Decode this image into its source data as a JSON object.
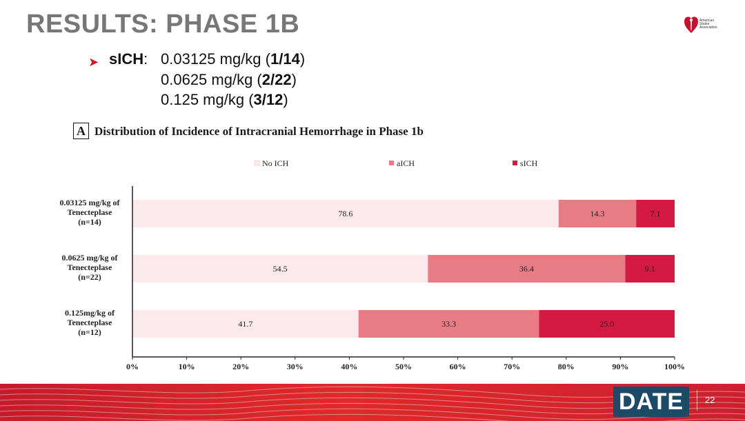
{
  "slide": {
    "title": "RESULTS: PHASE 1B",
    "page_number": "22",
    "footer_badge": "DATE",
    "logo_text": [
      "American",
      "Stroke",
      "Association."
    ]
  },
  "bullets": {
    "term": "sICH",
    "colon": ":",
    "lines": [
      {
        "dose": "0.03125 mg/kg (",
        "frac": "1/14",
        "close": ")"
      },
      {
        "dose": "0.0625 mg/kg (",
        "frac": "2/22",
        "close": ")"
      },
      {
        "dose": "0.125 mg/kg (",
        "frac": "3/12",
        "close": ")"
      }
    ]
  },
  "chart_data": {
    "type": "bar",
    "orientation": "horizontal",
    "stacked": true,
    "panel_label": "A",
    "title": "Distribution of Incidence of Intracranial Hemorrhage in Phase 1b",
    "categories": [
      [
        "0.03125 mg/kg of",
        "Tenecteplase",
        "(n=14)"
      ],
      [
        "0.0625 mg/kg of",
        "Tenecteplase",
        "(n=22)"
      ],
      [
        "0.125mg/kg of",
        "Tenecteplase",
        "(n=12)"
      ]
    ],
    "series": [
      {
        "name": "No ICH",
        "color": "#fbe9ec",
        "values": [
          78.6,
          54.5,
          41.7
        ],
        "labels": [
          "78.6",
          "54.5",
          "41.7"
        ]
      },
      {
        "name": "aICH",
        "color": "#e77c85",
        "values": [
          14.3,
          36.4,
          33.3
        ],
        "labels": [
          "14.3",
          "36.4",
          "33.3"
        ]
      },
      {
        "name": "sICH",
        "color": "#d41a42",
        "values": [
          7.1,
          9.1,
          25.0
        ],
        "labels": [
          "7.1",
          "9.1",
          "25.0"
        ]
      }
    ],
    "xlim": [
      0,
      100
    ],
    "xticks": [
      "0%",
      "10%",
      "20%",
      "30%",
      "40%",
      "50%",
      "60%",
      "70%",
      "80%",
      "90%",
      "100%"
    ],
    "legend_position": "top",
    "grid": false
  }
}
